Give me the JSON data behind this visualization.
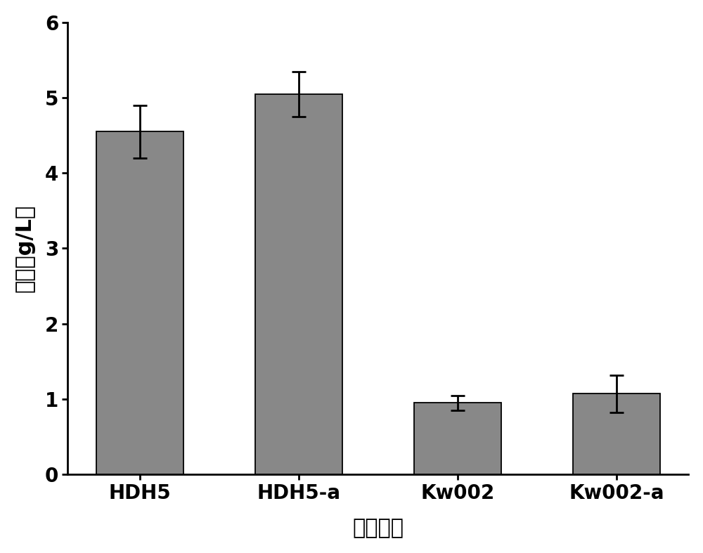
{
  "categories": [
    "HDH5",
    "HDH5-a",
    "Kw002",
    "Kw002-a"
  ],
  "values": [
    4.55,
    5.05,
    0.95,
    1.07
  ],
  "errors": [
    0.35,
    0.3,
    0.1,
    0.25
  ],
  "bar_color": "#888888",
  "bar_edgecolor": "#000000",
  "ylabel": "产量（g/L）",
  "xlabel": "菌株名称",
  "ylim": [
    0,
    6
  ],
  "yticks": [
    0,
    1,
    2,
    3,
    4,
    5,
    6
  ],
  "ylabel_fontsize": 22,
  "xlabel_fontsize": 22,
  "tick_fontsize": 20,
  "bar_width": 0.55,
  "error_capsize": 7,
  "error_linewidth": 2.0,
  "background_color": "#ffffff"
}
